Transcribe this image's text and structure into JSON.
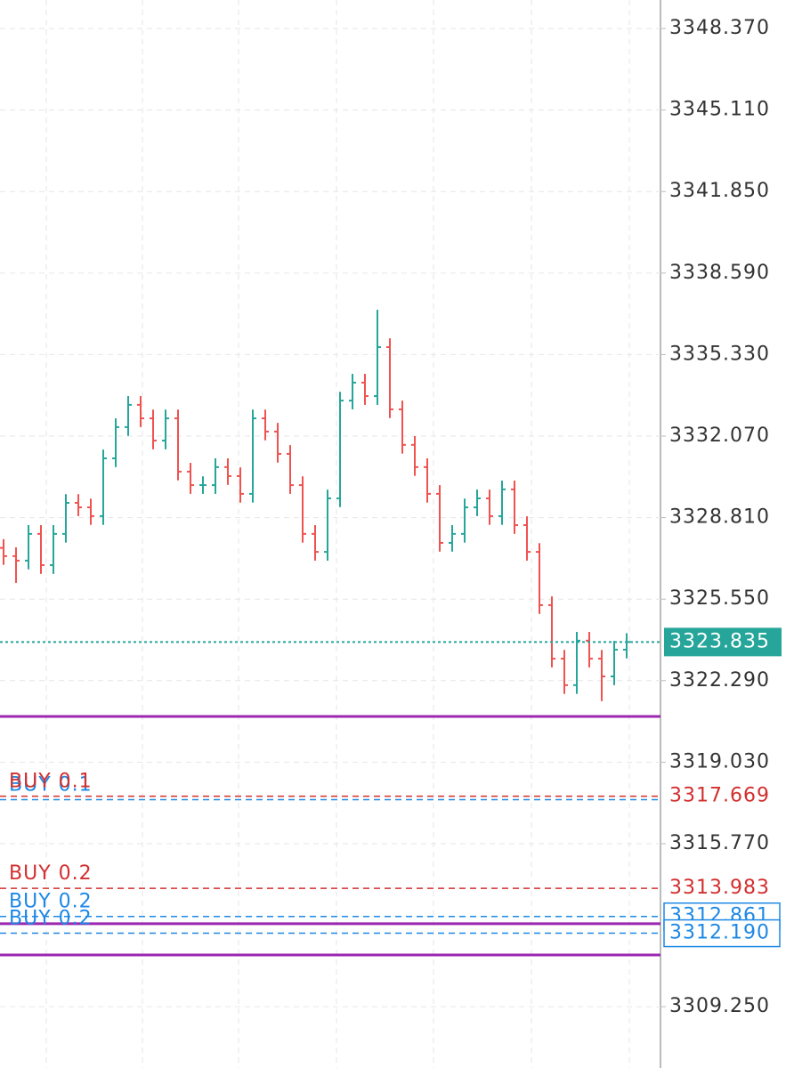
{
  "chart_data": {
    "type": "ohlc",
    "open": [
      3327.6,
      3327.27,
      3327.09,
      3328.16,
      3326.91,
      3328.16,
      3329.4,
      3329.22,
      3328.87,
      3331.18,
      3332.43,
      3333.32,
      3332.78,
      3331.89,
      3332.78,
      3330.65,
      3330.11,
      3330.11,
      3330.83,
      3330.47,
      3329.76,
      3332.78,
      3332.25,
      3331.36,
      3330.11,
      3328.16,
      3327.44,
      3329.58,
      3333.49,
      3334.21,
      3333.67,
      3335.63,
      3333.14,
      3331.72,
      3330.83,
      3329.76,
      3327.8,
      3328.16,
      3329.22,
      3329.58,
      3328.87,
      3329.94,
      3328.51,
      3327.44,
      3325.31,
      3323.17,
      3322.11,
      3323.89,
      3323.17,
      3322.46,
      3323.53
    ],
    "high": [
      3327.95,
      3327.62,
      3328.51,
      3328.51,
      3328.51,
      3329.75,
      3329.75,
      3329.57,
      3331.53,
      3332.78,
      3333.67,
      3333.67,
      3333.13,
      3333.13,
      3333.13,
      3331.0,
      3330.46,
      3331.18,
      3331.18,
      3330.82,
      3333.13,
      3333.13,
      3332.6,
      3331.71,
      3330.46,
      3328.51,
      3329.93,
      3333.84,
      3334.56,
      3334.56,
      3337.12,
      3335.98,
      3333.49,
      3332.07,
      3331.18,
      3330.11,
      3328.51,
      3329.57,
      3329.93,
      3329.93,
      3330.29,
      3330.29,
      3328.86,
      3327.79,
      3325.66,
      3323.52,
      3324.24,
      3324.24,
      3323.52,
      3323.88,
      3324.19
    ],
    "low": [
      3326.92,
      3326.2,
      3326.74,
      3326.56,
      3326.56,
      3327.81,
      3328.87,
      3328.52,
      3328.52,
      3330.83,
      3332.08,
      3332.43,
      3331.54,
      3331.54,
      3330.3,
      3329.76,
      3329.76,
      3329.76,
      3330.12,
      3329.41,
      3329.41,
      3331.9,
      3331.01,
      3329.76,
      3327.81,
      3327.09,
      3327.09,
      3329.23,
      3333.14,
      3333.32,
      3333.32,
      3332.79,
      3331.37,
      3330.48,
      3329.41,
      3327.45,
      3327.45,
      3327.81,
      3328.87,
      3328.52,
      3328.52,
      3328.16,
      3327.09,
      3324.96,
      3322.82,
      3321.76,
      3321.76,
      3322.82,
      3321.47,
      3322.11,
      3323.18
    ],
    "close": [
      3327.27,
      3327.09,
      3328.16,
      3326.91,
      3328.16,
      3329.4,
      3329.22,
      3328.87,
      3331.18,
      3332.43,
      3333.32,
      3332.78,
      3331.89,
      3332.78,
      3330.65,
      3330.11,
      3330.11,
      3330.83,
      3330.47,
      3329.76,
      3332.78,
      3332.25,
      3331.36,
      3330.11,
      3328.16,
      3327.44,
      3329.58,
      3333.49,
      3334.21,
      3333.67,
      3335.63,
      3333.14,
      3331.72,
      3330.83,
      3329.76,
      3327.8,
      3328.16,
      3329.22,
      3329.58,
      3328.87,
      3329.94,
      3328.51,
      3327.44,
      3325.31,
      3323.17,
      3322.11,
      3323.89,
      3323.17,
      3322.46,
      3323.53,
      3323.835
    ],
    "up_color": "#26a69a",
    "down_color": "#ef5350",
    "ylim": [
      3306.8,
      3349.51
    ],
    "yticks": [
      {
        "value": 3348.37,
        "label": "3348.370"
      },
      {
        "value": 3345.11,
        "label": "3345.110"
      },
      {
        "value": 3341.85,
        "label": "3341.850"
      },
      {
        "value": 3338.59,
        "label": "3338.590"
      },
      {
        "value": 3335.33,
        "label": "3335.330"
      },
      {
        "value": 3332.07,
        "label": "3332.070"
      },
      {
        "value": 3328.81,
        "label": "3328.810"
      },
      {
        "value": 3325.55,
        "label": "3325.550"
      },
      {
        "value": 3322.29,
        "label": "3322.290"
      },
      {
        "value": 3319.03,
        "label": "3319.030"
      },
      {
        "value": 3315.77,
        "label": "3315.770"
      },
      {
        "value": 3309.25,
        "label": "3309.250"
      }
    ],
    "grid": true,
    "current_price": {
      "price": 3323.835,
      "color": "#26a69a"
    },
    "levels": [
      {
        "price": 3320.86,
        "color": "#9c27b0"
      },
      {
        "price": 3312.57,
        "color": "#9c27b0"
      },
      {
        "price": 3311.32,
        "color": "#9c27b0"
      }
    ],
    "orders": [
      {
        "text": "BUY 0.1",
        "price": 3317.53,
        "color": "#1e88e5",
        "show_price": false,
        "boxed": false
      },
      {
        "text": "BUY 0.1",
        "price": 3317.669,
        "color": "#d32f2f",
        "show_price": true,
        "boxed": false
      },
      {
        "text": "BUY 0.2",
        "price": 3313.983,
        "color": "#d32f2f",
        "show_price": true,
        "boxed": false
      },
      {
        "text": "BUY 0.2",
        "price": 3312.861,
        "color": "#1e88e5",
        "show_price": true,
        "boxed": true
      },
      {
        "text": "BUY 0.2",
        "price": 3312.19,
        "price_label": "3312.190",
        "color": "#1e88e5",
        "show_price": true,
        "boxed": true
      }
    ]
  }
}
